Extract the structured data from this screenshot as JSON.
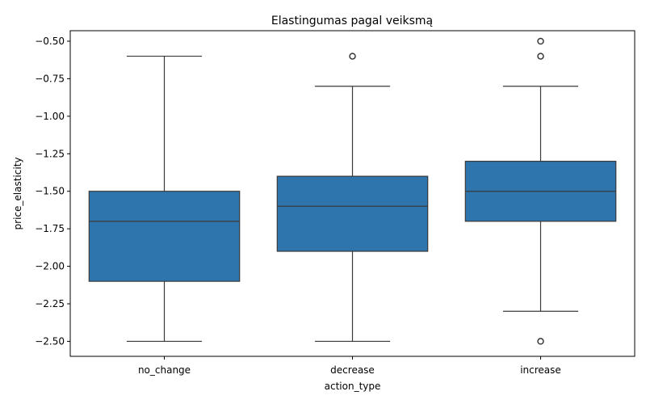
{
  "chart_data": {
    "type": "box",
    "title": "Elastingumas pagal veiksmą",
    "xlabel": "action_type",
    "ylabel": "price_elasticity",
    "ylim": [
      -2.6,
      -0.43
    ],
    "yticks": [
      -0.5,
      -0.75,
      -1.0,
      -1.25,
      -1.5,
      -1.75,
      -2.0,
      -2.25,
      -2.5
    ],
    "ytick_labels": [
      "−0.50",
      "−0.75",
      "−1.00",
      "−1.25",
      "−1.50",
      "−1.75",
      "−2.00",
      "−2.25",
      "−2.50"
    ],
    "categories": [
      "no_change",
      "decrease",
      "increase"
    ],
    "box_color": "#2e75ad",
    "line_color": "#3a3a3a",
    "grid": false,
    "boxes": [
      {
        "category": "no_change",
        "whisker_low": -2.5,
        "q1": -2.1,
        "median": -1.7,
        "q3": -1.5,
        "whisker_high": -0.6,
        "outliers": []
      },
      {
        "category": "decrease",
        "whisker_low": -2.5,
        "q1": -1.9,
        "median": -1.6,
        "q3": -1.4,
        "whisker_high": -0.8,
        "outliers": [
          -0.6
        ]
      },
      {
        "category": "increase",
        "whisker_low": -2.3,
        "q1": -1.7,
        "median": -1.5,
        "q3": -1.3,
        "whisker_high": -0.8,
        "outliers": [
          -0.5,
          -0.6,
          -2.5
        ]
      }
    ]
  }
}
